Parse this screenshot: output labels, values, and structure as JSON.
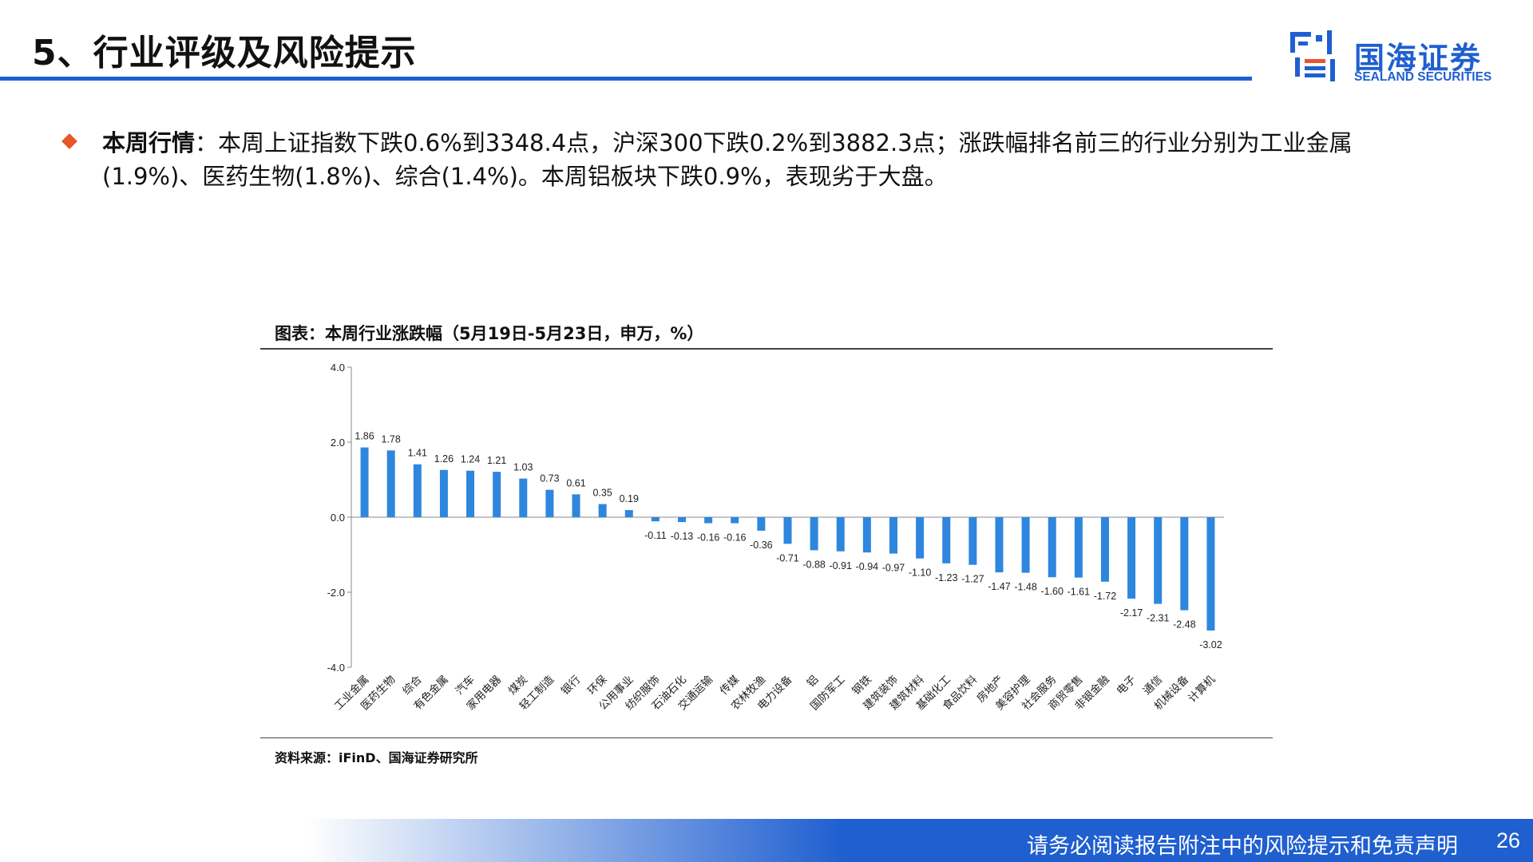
{
  "header": {
    "title": "5、行业评级及风险提示",
    "logo_cn": "国海证券",
    "logo_en": "SEALAND SECURITIES"
  },
  "body": {
    "label": "本周行情",
    "text": "：本周上证指数下跌0.6%到3348.4点，沪深300下跌0.2%到3882.3点；涨跌幅排名前三的行业分别为工业金属(1.9%)、医药生物(1.8%)、综合(1.4%)。本周铝板块下跌0.9%，表现劣于大盘。"
  },
  "figure": {
    "title": "图表：本周行业涨跌幅（5月19日-5月23日，申万，%）",
    "source": "资料来源：iFinD、国海证券研究所"
  },
  "footer": {
    "disclaimer": "请务必阅读报告附注中的风险提示和免责声明",
    "page": "26"
  },
  "colors": {
    "brand_blue": "#1f5fd0",
    "bar_blue": "#2e86de",
    "accent_orange": "#e8562a"
  },
  "chart_data": {
    "type": "bar",
    "title": "本周行业涨跌幅（5月19日-5月23日，申万，%）",
    "xlabel": "",
    "ylabel": "",
    "ylim": [
      -4.0,
      4.0
    ],
    "yticks": [
      "4.0",
      "2.0",
      "0.0",
      "-2.0",
      "-4.0"
    ],
    "ytick_values": [
      4,
      2,
      0,
      -2,
      -4
    ],
    "categories": [
      "工业金属",
      "医药生物",
      "综合",
      "有色金属",
      "汽车",
      "家用电器",
      "煤炭",
      "轻工制造",
      "银行",
      "环保",
      "公用事业",
      "纺织服饰",
      "石油石化",
      "交通运输",
      "传媒",
      "农林牧渔",
      "电力设备",
      "铝",
      "国防军工",
      "钢铁",
      "建筑装饰",
      "建筑材料",
      "基础化工",
      "食品饮料",
      "房地产",
      "美容护理",
      "社会服务",
      "商贸零售",
      "非银金融",
      "电子",
      "通信",
      "机械设备",
      "计算机"
    ],
    "values": [
      1.86,
      1.78,
      1.41,
      1.26,
      1.24,
      1.21,
      1.03,
      0.73,
      0.61,
      0.35,
      0.19,
      -0.11,
      -0.13,
      -0.16,
      -0.16,
      -0.36,
      -0.71,
      -0.88,
      -0.91,
      -0.94,
      -0.97,
      -1.1,
      -1.23,
      -1.27,
      -1.47,
      -1.48,
      -1.6,
      -1.61,
      -1.72,
      -2.17,
      -2.31,
      -2.48,
      -3.02
    ],
    "labels": [
      "1.86",
      "1.78",
      "1.41",
      "1.26",
      "1.24",
      "1.21",
      "1.03",
      "0.73",
      "0.61",
      "0.35",
      "0.19",
      "-0.11",
      "-0.13",
      "-0.16",
      "-0.16",
      "-0.36",
      "-0.71",
      "-0.88",
      "-0.91",
      "-0.94",
      "-0.97",
      "-1.10",
      "-1.23",
      "-1.27",
      "-1.47",
      "-1.48",
      "-1.60",
      "-1.61",
      "-1.72",
      "-2.17",
      "-2.31",
      "-2.48",
      "-3.02"
    ]
  }
}
